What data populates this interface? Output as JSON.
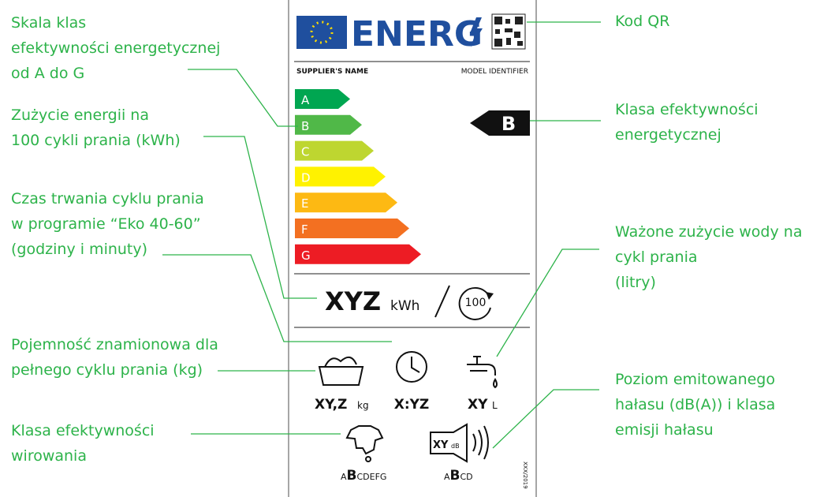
{
  "label": {
    "logo": "ENERG",
    "supplier": "SUPPLIER'S NAME",
    "model": "MODEL IDENTIFIER",
    "classes": [
      "A",
      "B",
      "C",
      "D",
      "E",
      "F",
      "G"
    ],
    "indicator": "B",
    "energy": {
      "value": "XYZ",
      "unit": "kWh",
      "cycles": "100"
    },
    "capacity": {
      "value": "XY,Z",
      "unit": "kg"
    },
    "duration": "X:YZ",
    "water": {
      "value": "XY",
      "unit": "L"
    },
    "noise": {
      "value": "XY",
      "unit": "dB"
    },
    "spin_classes": [
      "A",
      "B",
      "CDEFG"
    ],
    "noise_classes": [
      "A",
      "B",
      "CD"
    ],
    "regulation": "XXX/2019"
  },
  "callouts_left": [
    {
      "lines": [
        "Skala klas",
        "efektywności energetycznej",
        "od A do G"
      ]
    },
    {
      "lines": [
        "Zużycie energii na",
        "100 cykli prania (kWh)"
      ]
    },
    {
      "lines": [
        "Czas trwania cyklu prania",
        "w programie “Eko 40-60”",
        "(godziny i minuty)"
      ]
    },
    {
      "lines": [
        "Pojemność znamionowa dla",
        "pełnego cyklu prania (kg)"
      ]
    },
    {
      "lines": [
        "Klasa efektywności",
        "wirowania"
      ]
    }
  ],
  "callouts_right": [
    {
      "lines": [
        "Kod QR"
      ]
    },
    {
      "lines": [
        "Klasa efektywności",
        "energetycznej"
      ]
    },
    {
      "lines": [
        "Ważone zużycie wody na",
        "cykl prania",
        "(litry)"
      ]
    },
    {
      "lines": [
        "Poziom emitowanego",
        "hałasu (dB(A)) i klasa",
        "emisji hałasu"
      ]
    }
  ]
}
